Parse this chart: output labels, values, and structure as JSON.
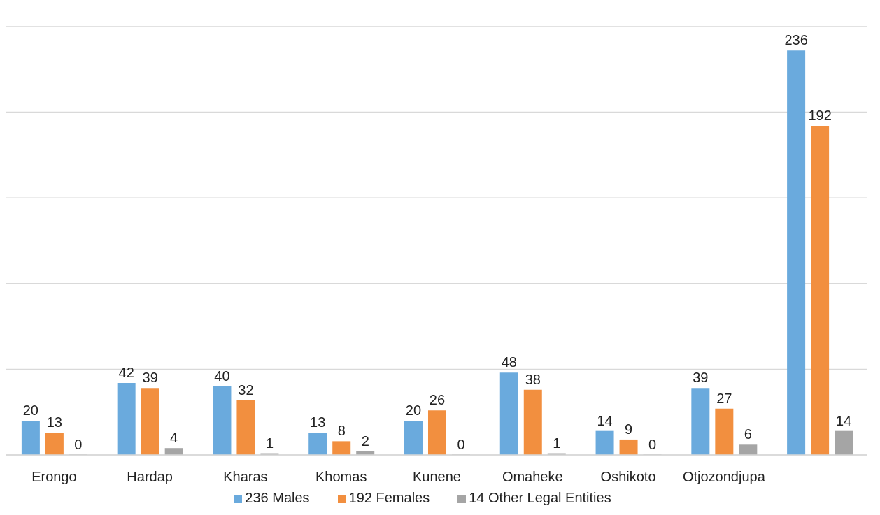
{
  "chart_data": {
    "type": "bar",
    "categories": [
      "Erongo",
      "Hardap",
      "Kharas",
      "Khomas",
      "Kunene",
      "Omaheke",
      "Oshikoto",
      "Otjozondjupa",
      null
    ],
    "series": [
      {
        "name": "236 Males",
        "color": "#6aaadd",
        "values": [
          20,
          42,
          40,
          13,
          20,
          48,
          14,
          39,
          236
        ]
      },
      {
        "name": "192 Females",
        "color": "#f28f3f",
        "values": [
          13,
          39,
          32,
          8,
          26,
          38,
          9,
          27,
          192
        ]
      },
      {
        "name": "14 Other Legal Entities",
        "color": "#a5a5a5",
        "values": [
          0,
          4,
          1,
          2,
          0,
          1,
          0,
          6,
          14
        ]
      }
    ],
    "ylim": [
      0,
      250
    ],
    "grid": "y",
    "tick_labels": "x",
    "data_labels": true,
    "legend": "bottom"
  }
}
